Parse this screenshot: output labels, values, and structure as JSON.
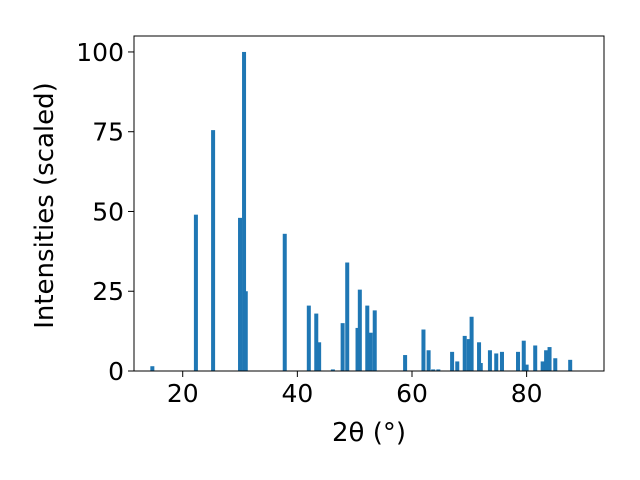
{
  "chart_data": {
    "type": "bar",
    "xlabel": "2θ (°)",
    "ylabel": "Intensities (scaled)",
    "xlim": [
      11.5,
      93.5
    ],
    "ylim": [
      0,
      105
    ],
    "xticks": [
      20,
      40,
      60,
      80
    ],
    "yticks": [
      0,
      25,
      50,
      75,
      100
    ],
    "xtick_labels": [
      "20",
      "40",
      "60",
      "80"
    ],
    "ytick_labels": [
      "0",
      "25",
      "50",
      "75",
      "100"
    ],
    "bar_width_deg": 0.7,
    "bar_color": "#1f77b4",
    "grid": false,
    "legend": "none",
    "x": [
      14.7,
      22.3,
      25.3,
      30.0,
      30.7,
      31.0,
      37.8,
      42.0,
      43.3,
      43.8,
      46.2,
      47.9,
      48.7,
      50.5,
      50.9,
      52.2,
      52.8,
      53.5,
      58.8,
      62.0,
      62.9,
      63.7,
      64.6,
      67.0,
      67.9,
      69.2,
      69.9,
      70.4,
      71.7,
      72.0,
      73.6,
      74.7,
      75.7,
      78.5,
      79.5,
      80.0,
      81.5,
      82.8,
      83.4,
      84.0,
      85.0,
      87.6
    ],
    "values": [
      1.5,
      49,
      75.5,
      48,
      100,
      25,
      43,
      20.5,
      18,
      9,
      0.5,
      15,
      34,
      13.5,
      25.5,
      20.5,
      12,
      19,
      5,
      13,
      6.5,
      0.5,
      0.5,
      6,
      3,
      11,
      10,
      17,
      9,
      2.5,
      6.5,
      5.5,
      6,
      6,
      9.5,
      2,
      8,
      3,
      6.5,
      7.5,
      4,
      3.5
    ]
  }
}
